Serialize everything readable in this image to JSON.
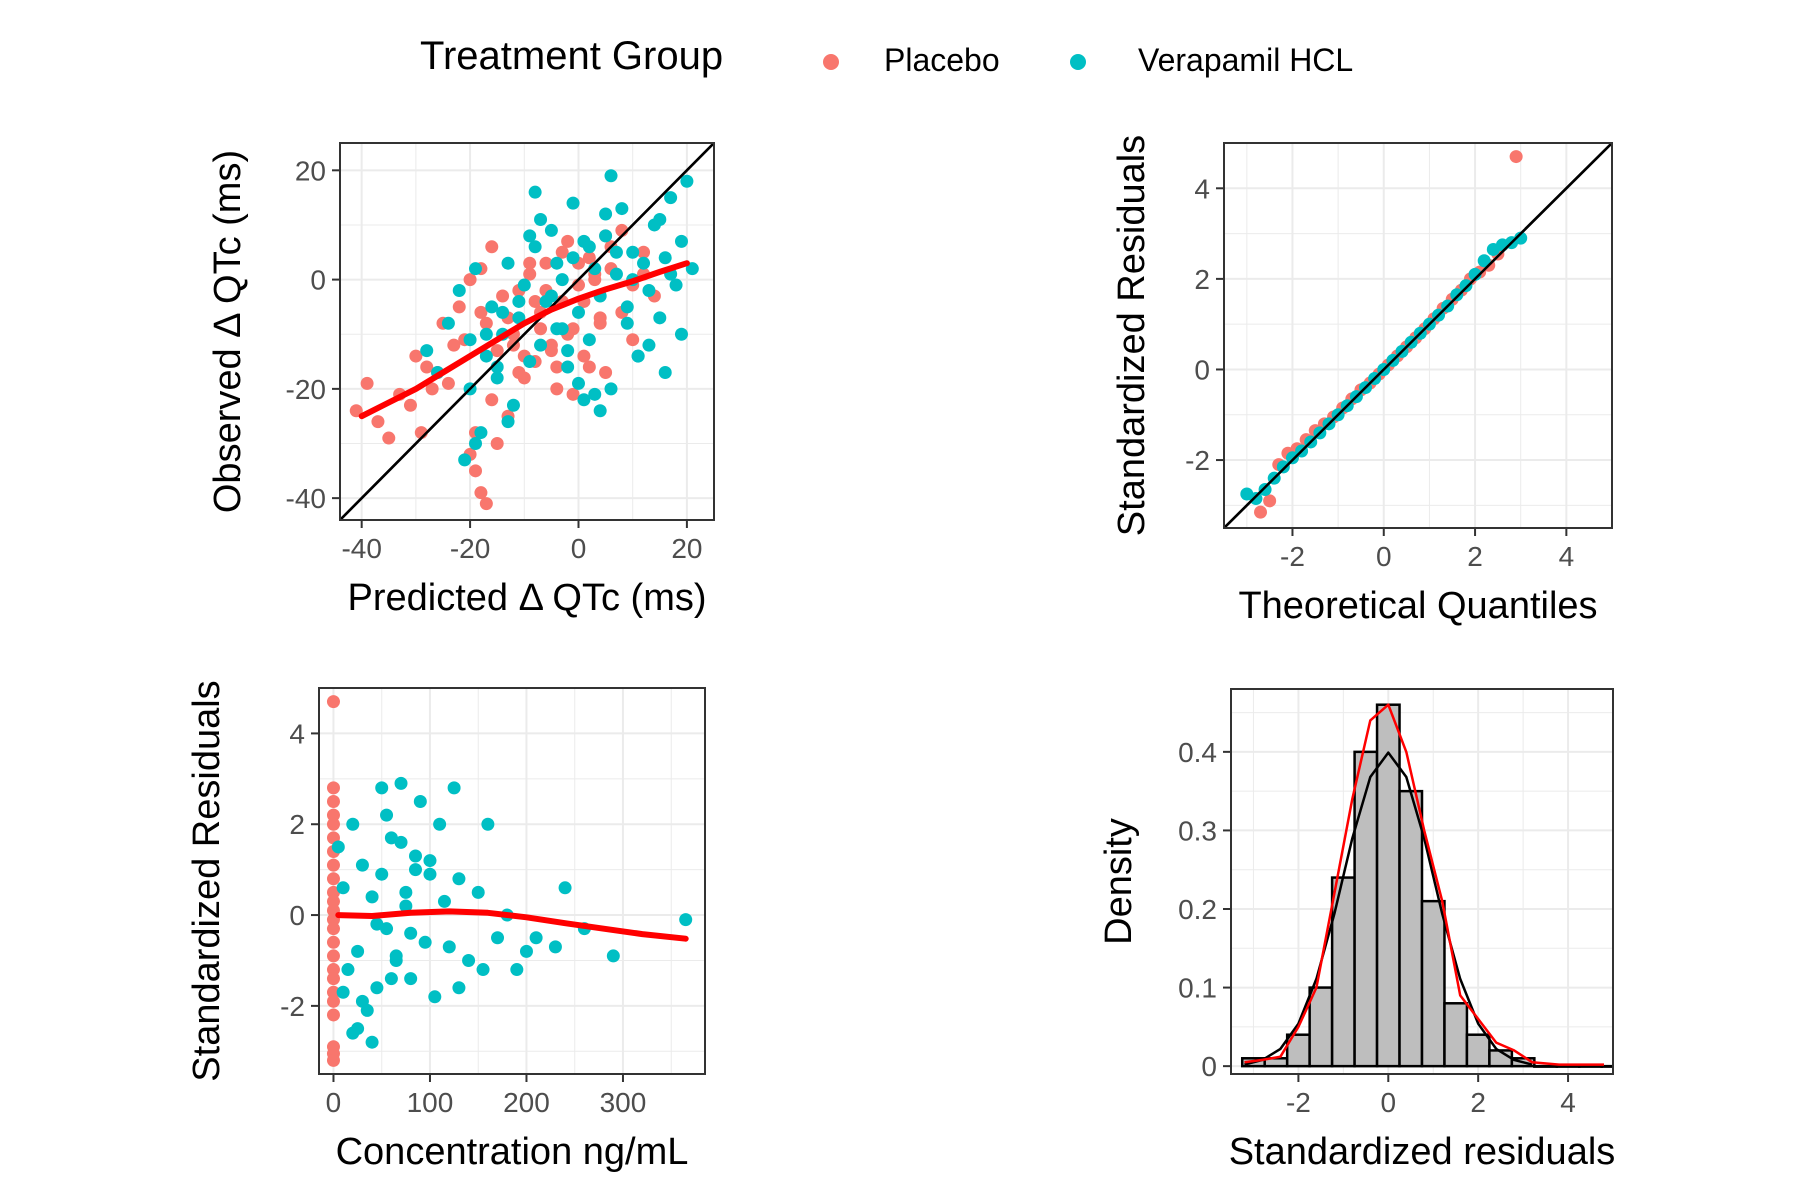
{
  "legend": {
    "title": "Treatment Group",
    "items": [
      {
        "label": "Placebo",
        "color": "#F8766D"
      },
      {
        "label": "Verapamil HCL",
        "color": "#00BFC4"
      }
    ]
  },
  "chart_data": [
    {
      "type": "scatter",
      "id": "obs_vs_pred",
      "title": "",
      "xlabel": "Predicted  Δ QTc (ms)",
      "ylabel": "Observed  Δ QTc (ms)",
      "xlim": [
        -44,
        25
      ],
      "ylim": [
        -44,
        25
      ],
      "xticks": [
        -40,
        -20,
        0,
        20
      ],
      "yticks": [
        -40,
        -20,
        0,
        20
      ],
      "grid": true,
      "reference_line": "identity",
      "series": [
        {
          "name": "Placebo",
          "color": "#F8766D",
          "x": [
            -41,
            -39,
            -37,
            -35,
            -33,
            -31,
            -30,
            -28,
            -27,
            -25,
            -24,
            -22,
            -21,
            -20,
            -19,
            -18,
            -17,
            -16,
            -15,
            -14,
            -13,
            -12,
            -11,
            -10,
            -9,
            -8,
            -7,
            -6,
            -5,
            -4,
            -3,
            -2,
            -1,
            0,
            1,
            2,
            3,
            4,
            5,
            6,
            8,
            10,
            12,
            14,
            -20,
            -18,
            -17,
            -16,
            -13,
            -11,
            -9,
            -7,
            -5,
            -3,
            -1,
            1,
            3,
            5,
            -19,
            -15,
            -10,
            -6,
            -2,
            2,
            6,
            10,
            -23,
            -26,
            -29,
            -18,
            -12,
            -8,
            -4,
            0,
            4,
            8,
            12
          ],
          "y": [
            -24,
            -19,
            -26,
            -29,
            -21,
            -23,
            -14,
            -16,
            -20,
            -8,
            -19,
            -5,
            -11,
            -32,
            -28,
            -39,
            -41,
            -22,
            -13,
            -3,
            -7,
            -10,
            -2,
            -18,
            1,
            -15,
            -6,
            3,
            -12,
            -20,
            -4,
            7,
            -9,
            -1,
            -14,
            4,
            0,
            -8,
            -17,
            2,
            -6,
            -11,
            5,
            -3,
            0,
            2,
            -8,
            6,
            -25,
            -17,
            3,
            -9,
            -13,
            5,
            -21,
            -4,
            1,
            8,
            -35,
            -30,
            -14,
            -2,
            -10,
            -16,
            6,
            -1,
            -12,
            -17,
            -28,
            -6,
            -12,
            -4,
            -16,
            3,
            -7,
            9,
            1
          ]
        },
        {
          "name": "Verapamil HCL",
          "color": "#00BFC4",
          "x": [
            -28,
            -26,
            -24,
            -22,
            -21,
            -20,
            -19,
            -18,
            -17,
            -16,
            -15,
            -14,
            -13,
            -12,
            -11,
            -10,
            -9,
            -8,
            -7,
            -6,
            -5,
            -4,
            -3,
            -2,
            -1,
            0,
            1,
            2,
            3,
            4,
            5,
            6,
            7,
            8,
            9,
            10,
            11,
            12,
            13,
            14,
            15,
            16,
            17,
            18,
            19,
            20,
            21,
            -19,
            -15,
            -11,
            -7,
            -3,
            1,
            5,
            9,
            13,
            17,
            -17,
            -13,
            -9,
            -5,
            -1,
            3,
            7,
            11,
            15,
            19,
            -20,
            -14,
            -8,
            -2,
            4,
            10,
            16,
            2,
            6,
            -4,
            0
          ],
          "y": [
            -13,
            -17,
            -8,
            -2,
            -33,
            -20,
            2,
            -28,
            -14,
            -5,
            -18,
            -10,
            3,
            -23,
            -7,
            -1,
            -15,
            6,
            -12,
            -4,
            9,
            -9,
            0,
            -16,
            4,
            -6,
            7,
            -11,
            2,
            -3,
            8,
            -20,
            1,
            13,
            -8,
            5,
            -14,
            3,
            -2,
            10,
            -7,
            4,
            15,
            -1,
            7,
            18,
            2,
            -30,
            -16,
            -4,
            11,
            -9,
            -22,
            12,
            -5,
            -12,
            1,
            -10,
            -26,
            8,
            -3,
            14,
            -21,
            5,
            -14,
            11,
            -10,
            -11,
            -6,
            16,
            -13,
            -24,
            0,
            -17,
            6,
            19,
            3,
            -19
          ]
        }
      ],
      "smooth": {
        "color": "#FF0000",
        "x": [
          -40,
          -35,
          -30,
          -25,
          -20,
          -15,
          -10,
          -5,
          0,
          5,
          10,
          15,
          20
        ],
        "y": [
          -25,
          -22.5,
          -20,
          -17,
          -14,
          -11,
          -8,
          -5.5,
          -3.5,
          -1.8,
          -0.3,
          1.4,
          3
        ]
      }
    },
    {
      "type": "scatter",
      "id": "qq_plot",
      "title": "",
      "xlabel": "Theoretical Quantiles",
      "ylabel": "Standardized Residuals",
      "xlim": [
        -3.5,
        5
      ],
      "ylim": [
        -3.5,
        5
      ],
      "xticks": [
        -2,
        0,
        2,
        4
      ],
      "yticks": [
        -2,
        0,
        2,
        4
      ],
      "grid": true,
      "reference_line": "identity",
      "series": [
        {
          "name": "Placebo",
          "color": "#F8766D",
          "x": [
            -2.7,
            -2.5,
            -2.3,
            -2.1,
            -1.9,
            -1.7,
            -1.5,
            -1.3,
            -1.1,
            -0.9,
            -0.7,
            -0.5,
            -0.3,
            -0.1,
            0.1,
            0.3,
            0.5,
            0.7,
            0.9,
            1.1,
            1.3,
            1.5,
            1.7,
            1.9,
            2.1,
            2.3,
            2.5,
            2.9
          ],
          "y": [
            -3.15,
            -2.9,
            -2.1,
            -1.85,
            -1.75,
            -1.55,
            -1.35,
            -1.2,
            -1.05,
            -0.85,
            -0.65,
            -0.45,
            -0.3,
            -0.1,
            0.1,
            0.3,
            0.5,
            0.7,
            0.9,
            1.12,
            1.35,
            1.55,
            1.75,
            2.0,
            2.15,
            2.3,
            2.55,
            4.7
          ]
        },
        {
          "name": "Verapamil HCL",
          "color": "#00BFC4",
          "x": [
            -3.0,
            -2.8,
            -2.6,
            -2.4,
            -2.2,
            -2.0,
            -1.8,
            -1.6,
            -1.4,
            -1.2,
            -1.0,
            -0.8,
            -0.6,
            -0.4,
            -0.2,
            0.0,
            0.2,
            0.4,
            0.6,
            0.8,
            1.0,
            1.2,
            1.4,
            1.6,
            1.8,
            2.0,
            2.2,
            2.4,
            2.6,
            2.8,
            3.0
          ],
          "y": [
            -2.75,
            -2.85,
            -2.65,
            -2.4,
            -2.15,
            -1.95,
            -1.8,
            -1.6,
            -1.4,
            -1.2,
            -1.0,
            -0.8,
            -0.6,
            -0.4,
            -0.2,
            0.0,
            0.2,
            0.4,
            0.6,
            0.8,
            1.0,
            1.2,
            1.4,
            1.65,
            1.85,
            2.1,
            2.4,
            2.65,
            2.75,
            2.8,
            2.9
          ]
        }
      ]
    },
    {
      "type": "scatter",
      "id": "resid_vs_conc",
      "title": "",
      "xlabel": "Concentration ng/mL",
      "ylabel": "Standardized Residuals",
      "xlim": [
        -15,
        385
      ],
      "ylim": [
        -3.5,
        5
      ],
      "xticks": [
        0,
        100,
        200,
        300
      ],
      "yticks": [
        -2,
        0,
        2,
        4
      ],
      "grid": true,
      "series": [
        {
          "name": "Placebo",
          "color": "#F8766D",
          "x": [
            0,
            0,
            0,
            0,
            0,
            0,
            0,
            0,
            0,
            0,
            0,
            0,
            0,
            0,
            0,
            0,
            0,
            0,
            0,
            0,
            0,
            0,
            0,
            0
          ],
          "y": [
            4.7,
            2.8,
            2.5,
            2.2,
            2.0,
            1.7,
            1.4,
            1.1,
            0.8,
            0.5,
            0.3,
            0.1,
            -0.1,
            -0.3,
            -0.6,
            -0.9,
            -1.2,
            -1.4,
            -1.7,
            -1.9,
            -2.2,
            -2.9,
            -3.05,
            -3.2
          ]
        },
        {
          "name": "Verapamil HCL",
          "color": "#00BFC4",
          "x": [
            5,
            10,
            15,
            20,
            25,
            30,
            35,
            40,
            45,
            50,
            55,
            60,
            65,
            70,
            75,
            80,
            85,
            90,
            95,
            100,
            105,
            110,
            115,
            120,
            125,
            130,
            140,
            150,
            160,
            170,
            180,
            190,
            200,
            210,
            230,
            240,
            260,
            290,
            365,
            20,
            40,
            60,
            80,
            100,
            30,
            50,
            70,
            55,
            65,
            75,
            85,
            10,
            25,
            45,
            130,
            155
          ],
          "y": [
            1.5,
            0.6,
            -1.2,
            2.0,
            -0.8,
            1.1,
            -2.1,
            0.4,
            -1.6,
            2.8,
            -0.3,
            1.7,
            -1.0,
            2.9,
            0.2,
            -1.4,
            1.3,
            2.5,
            -0.6,
            0.9,
            -1.8,
            2.0,
            0.3,
            -0.7,
            2.8,
            0.8,
            -1.0,
            0.5,
            2.0,
            -0.5,
            0.0,
            -1.2,
            -0.8,
            -0.5,
            -0.7,
            0.6,
            -0.3,
            -0.9,
            -0.1,
            -2.6,
            -2.8,
            -1.4,
            -0.4,
            1.2,
            -1.9,
            0.9,
            1.6,
            2.2,
            -0.9,
            0.5,
            1.0,
            -1.7,
            -2.5,
            -0.2,
            -1.6,
            -1.2
          ]
        }
      ],
      "smooth": {
        "color": "#FF0000",
        "x": [
          5,
          40,
          80,
          120,
          160,
          200,
          240,
          280,
          320,
          365
        ],
        "y": [
          0.0,
          -0.02,
          0.05,
          0.08,
          0.05,
          -0.05,
          -0.18,
          -0.3,
          -0.42,
          -0.52
        ]
      }
    },
    {
      "type": "bar",
      "id": "resid_histogram",
      "title": "",
      "xlabel": "Standardized residuals",
      "ylabel": "Density",
      "xlim": [
        -3.5,
        5
      ],
      "ylim": [
        -0.01,
        0.48
      ],
      "xticks": [
        -2,
        0,
        2,
        4
      ],
      "yticks": [
        0.0,
        0.1,
        0.2,
        0.3,
        0.4
      ],
      "grid": true,
      "bins": {
        "left": -3.25,
        "width": 0.5
      },
      "values": [
        0.01,
        0.01,
        0.04,
        0.1,
        0.24,
        0.4,
        0.46,
        0.35,
        0.21,
        0.08,
        0.04,
        0.02,
        0.01,
        0.0,
        0.0,
        0.0,
        0.0
      ],
      "bar_color": "#BEBEBE",
      "curves": [
        {
          "name": "normal density",
          "color": "#000000",
          "x": [
            -3.2,
            -2.8,
            -2.4,
            -2.0,
            -1.6,
            -1.2,
            -0.8,
            -0.4,
            0.0,
            0.4,
            0.8,
            1.2,
            1.6,
            2.0,
            2.4,
            2.8,
            3.2
          ],
          "y": [
            0.002,
            0.008,
            0.022,
            0.054,
            0.111,
            0.194,
            0.29,
            0.368,
            0.399,
            0.368,
            0.29,
            0.194,
            0.111,
            0.054,
            0.022,
            0.008,
            0.002
          ]
        },
        {
          "name": "kernel density",
          "color": "#FF0000",
          "x": [
            -3.2,
            -2.8,
            -2.4,
            -2.0,
            -1.6,
            -1.2,
            -0.8,
            -0.4,
            0.0,
            0.4,
            0.8,
            1.2,
            1.6,
            2.0,
            2.4,
            2.8,
            3.2,
            3.8,
            4.4,
            4.8
          ],
          "y": [
            0.005,
            0.008,
            0.012,
            0.05,
            0.1,
            0.22,
            0.34,
            0.44,
            0.46,
            0.4,
            0.3,
            0.21,
            0.09,
            0.06,
            0.03,
            0.02,
            0.005,
            0.002,
            0.002,
            0.002
          ]
        }
      ]
    }
  ]
}
